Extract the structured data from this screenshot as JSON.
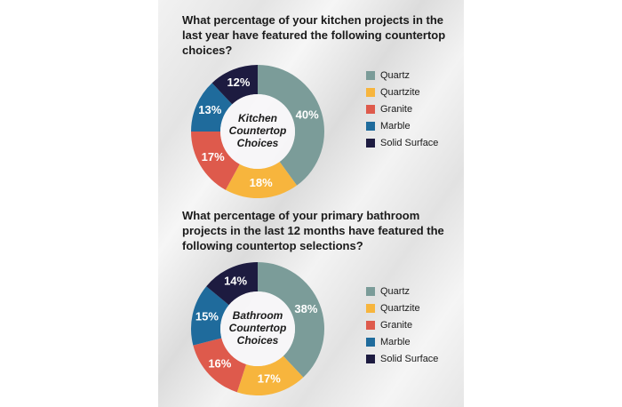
{
  "chart_data": [
    {
      "type": "pie",
      "title": "What percentage of your kitchen projects in the last year have featured the following countertop choices?",
      "center_label": [
        "Kitchen",
        "Countertop",
        "Choices"
      ],
      "categories": [
        "Quartz",
        "Quartzite",
        "Granite",
        "Marble",
        "Solid Surface"
      ],
      "values": [
        40,
        18,
        17,
        13,
        12
      ],
      "value_labels": [
        "40%",
        "18%",
        "17%",
        "13%",
        "12%"
      ],
      "colors": [
        "#7b9c99",
        "#f7b53d",
        "#de5a4c",
        "#1f6b9c",
        "#1d1b40"
      ]
    },
    {
      "type": "pie",
      "title": "What percentage of your primary bathroom projects in the last 12 months have featured the following countertop selections?",
      "center_label": [
        "Bathroom",
        "Countertop",
        "Choices"
      ],
      "categories": [
        "Quartz",
        "Quartzite",
        "Granite",
        "Marble",
        "Solid Surface"
      ],
      "values": [
        38,
        17,
        16,
        15,
        14
      ],
      "value_labels": [
        "38%",
        "17%",
        "16%",
        "15%",
        "14%"
      ],
      "colors": [
        "#7b9c99",
        "#f7b53d",
        "#de5a4c",
        "#1f6b9c",
        "#1d1b40"
      ]
    }
  ]
}
